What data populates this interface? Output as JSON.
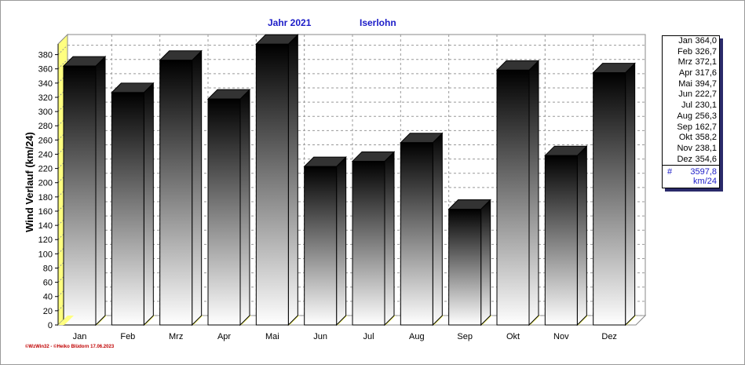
{
  "chart_data": {
    "type": "bar",
    "title_left": "Jahr  2021",
    "title_right": "Iserlohn",
    "ylabel": "Wind Verlauf  (km/24)",
    "xlabel": "",
    "categories": [
      "Jan",
      "Feb",
      "Mrz",
      "Apr",
      "Mai",
      "Jun",
      "Jul",
      "Aug",
      "Sep",
      "Okt",
      "Nov",
      "Dez"
    ],
    "values": [
      364.0,
      326.7,
      372.1,
      317.6,
      394.7,
      222.7,
      230.1,
      256.3,
      162.7,
      358.2,
      238.1,
      354.6
    ],
    "ylim": [
      0,
      395
    ],
    "yticks": [
      0,
      20,
      40,
      60,
      80,
      100,
      120,
      140,
      160,
      180,
      200,
      220,
      240,
      260,
      280,
      300,
      320,
      340,
      360,
      380
    ],
    "grid": true,
    "legend_position": "right",
    "colors": {
      "title": "#1c1cc8",
      "floor": "#ffff80",
      "bar_top": "#000000",
      "bar_bottom": "#ffffff",
      "footer": "#c00000"
    }
  },
  "legend": {
    "rows": [
      {
        "month": "Jan",
        "value": "364,0"
      },
      {
        "month": "Feb",
        "value": "326,7"
      },
      {
        "month": "Mrz",
        "value": "372,1"
      },
      {
        "month": "Apr",
        "value": "317,6"
      },
      {
        "month": "Mai",
        "value": "394,7"
      },
      {
        "month": "Jun",
        "value": "222,7"
      },
      {
        "month": "Jul",
        "value": "230,1"
      },
      {
        "month": "Aug",
        "value": "256,3"
      },
      {
        "month": "Sep",
        "value": "162,7"
      },
      {
        "month": "Okt",
        "value": "358,2"
      },
      {
        "month": "Nov",
        "value": "238,1"
      },
      {
        "month": "Dez",
        "value": "354,6"
      }
    ],
    "total_symbol": "#",
    "total_value": "3597,8",
    "total_unit": "km/24"
  },
  "footer": "©WzWin32  -  ©Heiko Blüdorn  17.06.2023"
}
